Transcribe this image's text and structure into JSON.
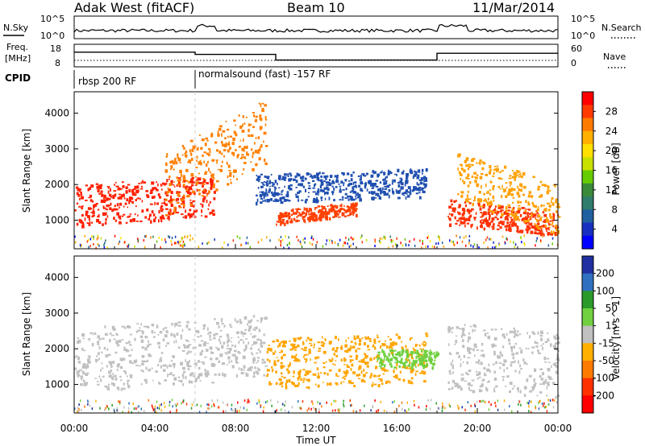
{
  "header": {
    "title": "Adak West (fitACF)",
    "beam": "Beam 10",
    "date": "11/Mar/2014"
  },
  "noise_panel": {
    "left_label": "N.Sky",
    "right_label": "N.Search",
    "left_ticks": [
      "10^5",
      "10^0"
    ],
    "right_ticks": [
      "10^5",
      "10^0"
    ]
  },
  "freq_panel": {
    "left_label_1": "Freq.",
    "left_label_2": "[MHz]",
    "right_label": "Nave",
    "left_ticks": [
      "18",
      "8"
    ],
    "right_ticks": [
      "60",
      "0"
    ],
    "freq_steps": [
      {
        "start_h": 0.0,
        "end_h": 6.0,
        "level": 0.35
      },
      {
        "start_h": 6.0,
        "end_h": 10.0,
        "level": 0.45
      },
      {
        "start_h": 10.0,
        "end_h": 18.0,
        "level": 0.7
      },
      {
        "start_h": 18.0,
        "end_h": 24.0,
        "level": 0.4
      }
    ]
  },
  "cpid": {
    "label": "CPID",
    "segments": [
      {
        "start_h": 0.0,
        "text": "rbsp 200 RF"
      },
      {
        "start_h": 6.0,
        "text": "normalsound (fast) -157 RF"
      }
    ]
  },
  "chart_data": [
    {
      "type": "heatmap",
      "title": "",
      "xlabel": "Time UT",
      "ylabel": "Slant Range [km]",
      "x_ticks": [
        "00:00",
        "04:00",
        "08:00",
        "12:00",
        "16:00",
        "20:00",
        "00:00"
      ],
      "x_range_hours": [
        0,
        24
      ],
      "y_ticks": [
        1000,
        2000,
        3000,
        4000
      ],
      "ylim": [
        200,
        4600
      ],
      "colorbar": {
        "label": "Power [dB]",
        "ticks": [
          "28",
          "24",
          "20",
          "16",
          "12",
          "8",
          "4"
        ],
        "colors": [
          "#ff0000",
          "#ff3a00",
          "#ff7a00",
          "#ffb000",
          "#ffe000",
          "#c8e000",
          "#66cc00",
          "#3a8a3a",
          "#2f7d6a",
          "#2060a0",
          "#1830c0",
          "#0000ff"
        ]
      },
      "bands": [
        {
          "name": "",
          "start_h": 0.0,
          "end_h": 7.0,
          "r0": 850,
          "r1": 2000,
          "slope": 40,
          "color": "#ff2000"
        },
        {
          "name": "",
          "start_h": 4.5,
          "end_h": 9.5,
          "r0": 1100,
          "r1": 2900,
          "slope": 300,
          "color": "#ff8000"
        },
        {
          "name": "",
          "start_h": 9.0,
          "end_h": 17.5,
          "r0": 1500,
          "r1": 2300,
          "slope": 20,
          "color": "#2050b0"
        },
        {
          "name": "",
          "start_h": 10.0,
          "end_h": 14.0,
          "r0": 900,
          "r1": 1300,
          "slope": 60,
          "color": "#ff4000"
        },
        {
          "name": "",
          "start_h": 18.5,
          "end_h": 24.0,
          "r0": 900,
          "r1": 1600,
          "slope": -60,
          "color": "#ff3000"
        },
        {
          "name": "",
          "start_h": 19.0,
          "end_h": 24.0,
          "r0": 1600,
          "r1": 3000,
          "slope": -200,
          "color": "#ffa000"
        }
      ]
    },
    {
      "type": "heatmap",
      "title": "",
      "xlabel": "Time UT",
      "ylabel": "Slant Range [km]",
      "x_ticks": [
        "00:00",
        "04:00",
        "08:00",
        "12:00",
        "16:00",
        "20:00",
        "00:00"
      ],
      "x_range_hours": [
        0,
        24
      ],
      "y_ticks": [
        1000,
        2000,
        3000,
        4000
      ],
      "ylim": [
        200,
        4600
      ],
      "colorbar": {
        "label": "Velocity [m s^-1]",
        "ticks": [
          "200",
          "100",
          "50",
          "15",
          "-15",
          "-50",
          "-100",
          "-200"
        ],
        "colors": [
          "#2030a0",
          "#3070c0",
          "#2a9a2a",
          "#70d040",
          "#c0c0c0",
          "#ffb000",
          "#ff7a00",
          "#ff3000",
          "#ff0000"
        ]
      },
      "bands": [
        {
          "name": "",
          "start_h": 0.0,
          "end_h": 9.5,
          "r0": 800,
          "r1": 2600,
          "slope": 40,
          "color": "#c0c0c0"
        },
        {
          "name": "",
          "start_h": 9.5,
          "end_h": 17.5,
          "r0": 900,
          "r1": 2300,
          "slope": 20,
          "color": "#ffa500"
        },
        {
          "name": "",
          "start_h": 15.0,
          "end_h": 18.0,
          "r0": 1500,
          "r1": 2000,
          "slope": 0,
          "color": "#70d040"
        },
        {
          "name": "",
          "start_h": 18.5,
          "end_h": 24.0,
          "r0": 900,
          "r1": 2800,
          "slope": -60,
          "color": "#c0c0c0"
        }
      ]
    }
  ]
}
